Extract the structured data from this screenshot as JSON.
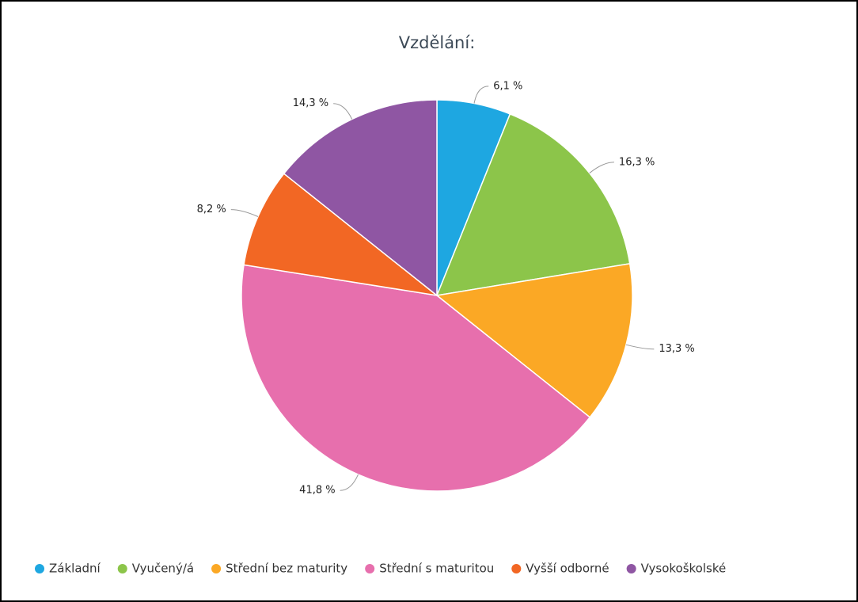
{
  "chart_data": {
    "type": "pie",
    "title": "Vzdělání:",
    "categories": [
      "Základní",
      "Vyučený/á",
      "Střední bez maturity",
      "Střední s maturitou",
      "Vyšší odborné",
      "Vysokoškolské"
    ],
    "values": [
      6.1,
      16.3,
      13.3,
      41.8,
      8.2,
      14.3
    ],
    "value_labels": [
      "6,1 %",
      "16,3 %",
      "13,3 %",
      "41,8 %",
      "8,2 %",
      "14,3 %"
    ],
    "colors": [
      "#1ea7e1",
      "#8cc54a",
      "#fba825",
      "#e76fad",
      "#f26724",
      "#8f56a3"
    ]
  }
}
